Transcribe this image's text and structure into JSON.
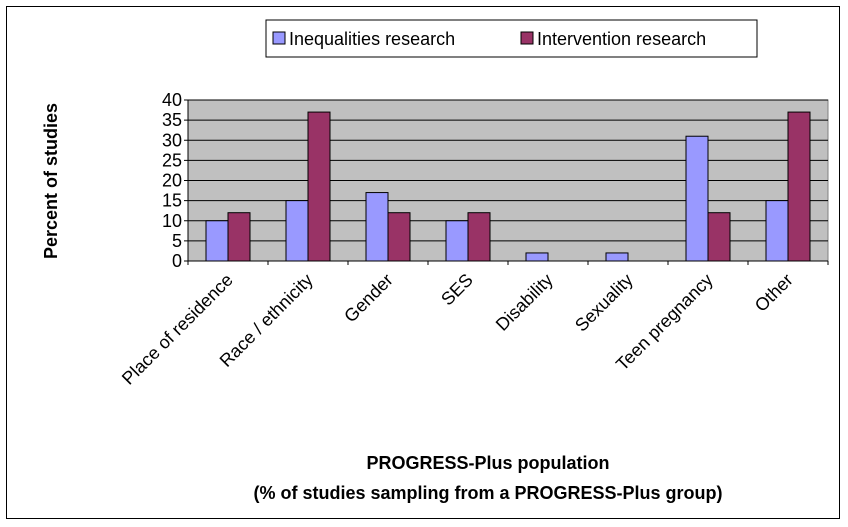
{
  "chart_data": {
    "type": "bar",
    "categories": [
      "Place of residence",
      "Race / ethnicity",
      "Gender",
      "SES",
      "Disability",
      "Sexuality",
      "Teen pregnancy",
      "Other"
    ],
    "series": [
      {
        "name": "Inequalities research",
        "color": "#9999ff",
        "values": [
          10,
          15,
          17,
          10,
          2,
          2,
          31,
          15
        ]
      },
      {
        "name": "Intervention research",
        "color": "#993366",
        "values": [
          12,
          37,
          12,
          12,
          0,
          0,
          12,
          37
        ]
      }
    ],
    "ylabel": "Percent of studies",
    "xlabel": "PROGRESS-Plus population",
    "xlabel_sub": "(% of studies sampling from a PROGRESS-Plus group)",
    "ylim": [
      0,
      40
    ],
    "yticks": [
      0,
      5,
      10,
      15,
      20,
      25,
      30,
      35,
      40
    ],
    "grid": true,
    "plot_background": "#c0c0c0",
    "legend_position": "top"
  }
}
